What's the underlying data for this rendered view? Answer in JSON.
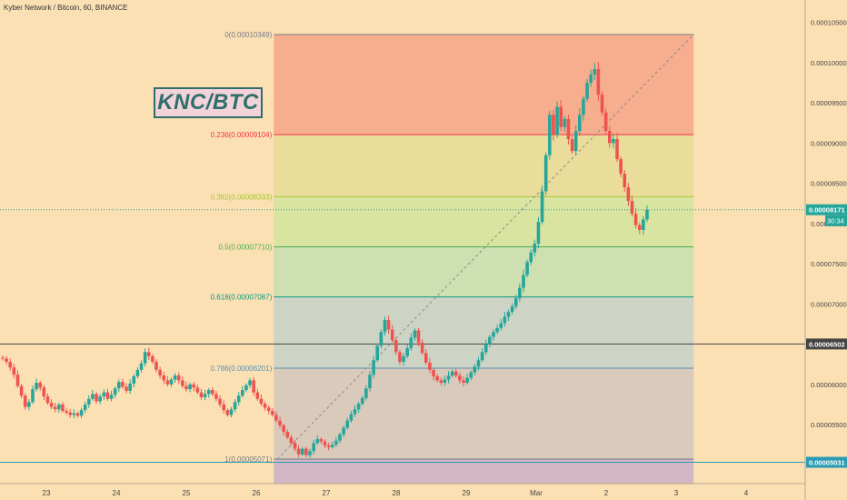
{
  "header": {
    "symbol": "Kyber Network / Bitcoin, 60, BINANCE"
  },
  "overlay": {
    "badge": "KNC/BTC"
  },
  "price_labels": {
    "current": "0.00008171",
    "countdown": "30:34",
    "hline_upper": "0.00006502",
    "hline_lower": "0.00005031"
  },
  "chart_data": {
    "type": "candlestick",
    "title": "Kyber Network / Bitcoin, 60, BINANCE",
    "y_ticks": [
      0.000105,
      0.0001,
      9.5e-05,
      9e-05,
      8.5e-05,
      8e-05,
      7.5e-05,
      7e-05,
      6.5e-05,
      6e-05,
      5.5e-05,
      5e-05
    ],
    "y_tick_labels": [
      "0.00010500",
      "0.00010000",
      "0.00009500",
      "0.00009000",
      "0.00008500",
      "0.00008000",
      "0.00007500",
      "0.00007000",
      "0.00006500",
      "0.00006000",
      "0.00005500",
      "0.00005000"
    ],
    "ylim": [
      4.95e-05,
      0.000108
    ],
    "x_ticks": [
      "23",
      "24",
      "25",
      "26",
      "27",
      "28",
      "29",
      "Mar",
      "2",
      "3",
      "4"
    ],
    "x_range_days": [
      22.4,
      32.5
    ],
    "fib_levels": [
      {
        "ratio": 0,
        "price": 0.00010349,
        "label": "0(0.00010349)",
        "color": "#787b86"
      },
      {
        "ratio": 0.236,
        "price": 9.104e-05,
        "label": "0.236(0.00009104)",
        "color": "#f23645"
      },
      {
        "ratio": 0.382,
        "price": 8.333e-05,
        "label": "0.382(0.00008333)",
        "color": "#a7c62f"
      },
      {
        "ratio": 0.5,
        "price": 7.71e-05,
        "label": "0.5(0.00007710)",
        "color": "#4caf50"
      },
      {
        "ratio": 0.618,
        "price": 7.087e-05,
        "label": "0.618(0.00007087)",
        "color": "#089981"
      },
      {
        "ratio": 0.786,
        "price": 6.201e-05,
        "label": "0.786(0.00006201)",
        "color": "#5b8fb0"
      },
      {
        "ratio": 1,
        "price": 5.071e-05,
        "label": "1(0.00005071)",
        "color": "#787b86"
      }
    ],
    "fib_x_range_days": [
      26.25,
      32.25
    ],
    "zone_colors": [
      "#f5a98b",
      "#e8dd98",
      "#d6e49e",
      "#c9dfb0",
      "#c9d3c7",
      "#d5c8bb",
      "#cdb1c4"
    ],
    "horizontal_lines": [
      {
        "price": 6.502e-05,
        "color": "#444444"
      },
      {
        "price": 5.031e-05,
        "color": "#2a9db5"
      }
    ],
    "current_price": 8.171e-05,
    "trend_line": {
      "from": [
        26.3,
        5.07e-05
      ],
      "to": [
        32.25,
        0.0001035
      ]
    },
    "colors": {
      "up": "#26a69a",
      "down": "#ef5350"
    },
    "candle_closes": [
      6.32e-05,
      6.28e-05,
      6.21e-05,
      6.12e-05,
      5.98e-05,
      5.86e-05,
      5.72e-05,
      5.78e-05,
      5.94e-05,
      6.02e-05,
      5.96e-05,
      5.85e-05,
      5.77e-05,
      5.72e-05,
      5.69e-05,
      5.75e-05,
      5.67e-05,
      5.65e-05,
      5.62e-05,
      5.64e-05,
      5.61e-05,
      5.68e-05,
      5.75e-05,
      5.82e-05,
      5.88e-05,
      5.79e-05,
      5.85e-05,
      5.9e-05,
      5.82e-05,
      5.87e-05,
      5.95e-05,
      6.03e-05,
      5.97e-05,
      5.92e-05,
      6.01e-05,
      6.1e-05,
      6.18e-05,
      6.26e-05,
      6.4e-05,
      6.35e-05,
      6.28e-05,
      6.18e-05,
      6.11e-05,
      6.05e-05,
      6e-05,
      6.06e-05,
      6.11e-05,
      6.05e-05,
      5.98e-05,
      5.94e-05,
      6e-05,
      5.96e-05,
      5.9e-05,
      5.84e-05,
      5.88e-05,
      5.93e-05,
      5.88e-05,
      5.82e-05,
      5.75e-05,
      5.68e-05,
      5.62e-05,
      5.69e-05,
      5.78e-05,
      5.86e-05,
      5.93e-05,
      5.99e-05,
      6.05e-05,
      5.9e-05,
      5.82e-05,
      5.76e-05,
      5.71e-05,
      5.67e-05,
      5.62e-05,
      5.55e-05,
      5.49e-05,
      5.41e-05,
      5.34e-05,
      5.27e-05,
      5.2e-05,
      5.13e-05,
      5.2e-05,
      5.12e-05,
      5.17e-05,
      5.27e-05,
      5.32e-05,
      5.29e-05,
      5.24e-05,
      5.22e-05,
      5.25e-05,
      5.3e-05,
      5.38e-05,
      5.46e-05,
      5.55e-05,
      5.63e-05,
      5.69e-05,
      5.76e-05,
      5.83e-05,
      5.95e-05,
      6.12e-05,
      6.3e-05,
      6.48e-05,
      6.65e-05,
      6.8e-05,
      6.68e-05,
      6.55e-05,
      6.4e-05,
      6.28e-05,
      6.35e-05,
      6.45e-05,
      6.58e-05,
      6.67e-05,
      6.52e-05,
      6.39e-05,
      6.27e-05,
      6.18e-05,
      6.1e-05,
      6.05e-05,
      6.02e-05,
      6.06e-05,
      6.11e-05,
      6.16e-05,
      6.11e-05,
      6.05e-05,
      6.02e-05,
      6.08e-05,
      6.15e-05,
      6.22e-05,
      6.3e-05,
      6.4e-05,
      6.5e-05,
      6.59e-05,
      6.65e-05,
      6.7e-05,
      6.76e-05,
      6.84e-05,
      6.9e-05,
      6.97e-05,
      7.07e-05,
      7.2e-05,
      7.36e-05,
      7.52e-05,
      7.64e-05,
      7.75e-05,
      8.02e-05,
      8.4e-05,
      8.85e-05,
      9.35e-05,
      9.1e-05,
      9.45e-05,
      9.2e-05,
      9.3e-05,
      9.05e-05,
      8.9e-05,
      9.15e-05,
      9.35e-05,
      9.55e-05,
      9.75e-05,
      9.85e-05,
      9.92e-05,
      9.6e-05,
      9.38e-05,
      9.15e-05,
      9e-05,
      9.05e-05,
      8.8e-05,
      8.62e-05,
      8.45e-05,
      8.28e-05,
      8.12e-05,
      7.98e-05,
      7.92e-05,
      8.05e-05,
      8.17e-05
    ]
  }
}
